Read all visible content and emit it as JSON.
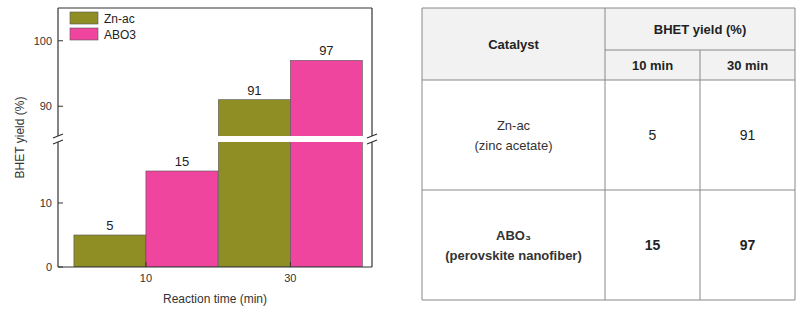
{
  "chart_data": {
    "type": "bar",
    "y_label": "BHET yield (%)",
    "x_label": "Reaction time (min)",
    "categories": [
      "10",
      "30"
    ],
    "series": [
      {
        "name": "Zn-ac",
        "color": "#8e8e24",
        "values": [
          5,
          91
        ]
      },
      {
        "name": "ABO3",
        "color": "#f0459f",
        "values": [
          15,
          97
        ]
      }
    ],
    "ylim": [
      0,
      105
    ],
    "ybreak": [
      20,
      85
    ],
    "yticks": [
      0,
      10,
      90,
      100
    ],
    "grid": false,
    "legend": "upper left",
    "data_labels": true
  },
  "table": {
    "header": [
      "Catalyst",
      "BHET yield (%)"
    ],
    "subheader": [
      "10 min",
      "30 min"
    ],
    "rows": [
      [
        [
          "Zn-ac",
          "(zinc acetate)"
        ],
        5,
        91
      ],
      [
        [
          "ABO₃",
          "(perovskite nanofiber)"
        ],
        15,
        97
      ]
    ]
  }
}
